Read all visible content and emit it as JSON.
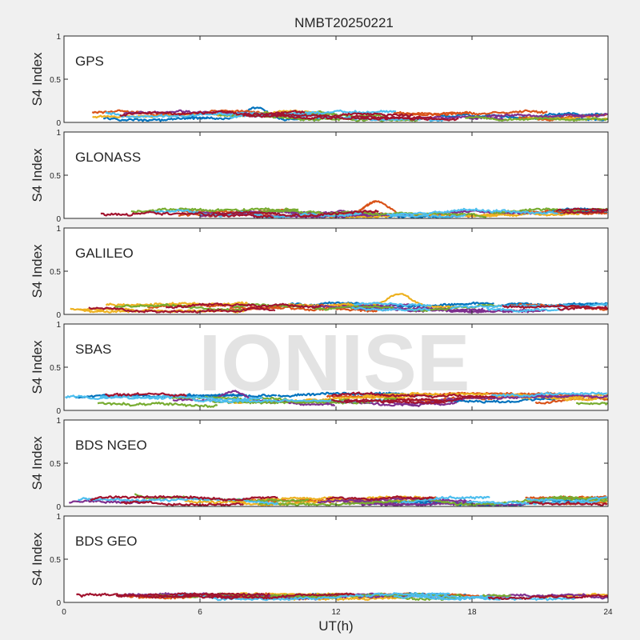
{
  "figure": {
    "title": "NMBT20250221",
    "watermark": "IONISE",
    "shared_xlabel": "UT(h)"
  },
  "colors": {
    "series": [
      "#0072BD",
      "#D95319",
      "#EDB120",
      "#7E2F8E",
      "#77AC30",
      "#4DBEEE",
      "#A2142F"
    ],
    "background": "#f0f0f0",
    "axes": "#ffffff",
    "watermark": "#e6e6e6"
  },
  "chart_data": [
    {
      "type": "line",
      "label": "GPS",
      "ylabel": "S4 Index",
      "xlim": [
        0,
        24
      ],
      "ylim": [
        0,
        1
      ],
      "xticks": [
        0,
        6,
        12,
        18,
        24
      ],
      "yticks": [
        0,
        0.5,
        1
      ],
      "ytick_labels": [
        "0",
        "0.5",
        "1"
      ],
      "xtick_labels_shown": false,
      "grid": false,
      "typical_s4": [
        0.04,
        0.12
      ],
      "peak": {
        "x": 8.5,
        "y": 0.17
      }
    },
    {
      "type": "line",
      "label": "GLONASS",
      "ylabel": "S4 Index",
      "xlim": [
        0,
        24
      ],
      "ylim": [
        0,
        1
      ],
      "xticks": [
        0,
        6,
        12,
        18,
        24
      ],
      "yticks": [
        0,
        0.5,
        1
      ],
      "ytick_labels": [
        "0",
        "0.5",
        "1"
      ],
      "xtick_labels_shown": false,
      "grid": false,
      "typical_s4": [
        0.03,
        0.1
      ],
      "peak": {
        "x": 13.8,
        "y": 0.2
      }
    },
    {
      "type": "line",
      "label": "GALILEO",
      "ylabel": "S4 Index",
      "xlim": [
        0,
        24
      ],
      "ylim": [
        0,
        1
      ],
      "xticks": [
        0,
        6,
        12,
        18,
        24
      ],
      "yticks": [
        0,
        0.5,
        1
      ],
      "ytick_labels": [
        "0",
        "0.5",
        "1"
      ],
      "xtick_labels_shown": false,
      "grid": false,
      "typical_s4": [
        0.05,
        0.12
      ],
      "peak": {
        "x": 14.8,
        "y": 0.24
      }
    },
    {
      "type": "line",
      "label": "SBAS",
      "ylabel": "S4 Index",
      "xlim": [
        0,
        24
      ],
      "ylim": [
        0,
        1
      ],
      "xticks": [
        0,
        6,
        12,
        18,
        24
      ],
      "yticks": [
        0,
        0.5,
        1
      ],
      "ytick_labels": [
        "0",
        "0.5",
        "1"
      ],
      "xtick_labels_shown": false,
      "grid": false,
      "typical_s4": [
        0.08,
        0.18
      ],
      "peak": {
        "x": 7.5,
        "y": 0.22
      }
    },
    {
      "type": "line",
      "label": "BDS NGEO",
      "ylabel": "S4 Index",
      "xlim": [
        0,
        24
      ],
      "ylim": [
        0,
        1
      ],
      "xticks": [
        0,
        6,
        12,
        18,
        24
      ],
      "yticks": [
        0,
        0.5,
        1
      ],
      "ytick_labels": [
        "0",
        "0.5",
        "1"
      ],
      "xtick_labels_shown": false,
      "grid": false,
      "typical_s4": [
        0.03,
        0.1
      ],
      "peak": {
        "x": 2.8,
        "y": 0.15
      }
    },
    {
      "type": "line",
      "label": "BDS GEO",
      "ylabel": "S4 Index",
      "xlim": [
        0,
        24
      ],
      "ylim": [
        0,
        1
      ],
      "xticks": [
        0,
        6,
        12,
        18,
        24
      ],
      "yticks": [
        0,
        0.5,
        1
      ],
      "ytick_labels": [
        "0",
        "0.5",
        "1"
      ],
      "xtick_labels": [
        "0",
        "6",
        "12",
        "18",
        "24"
      ],
      "xtick_labels_shown": true,
      "grid": false,
      "typical_s4": [
        0.06,
        0.09
      ],
      "peak": {
        "x": 5.5,
        "y": 0.1
      }
    }
  ]
}
